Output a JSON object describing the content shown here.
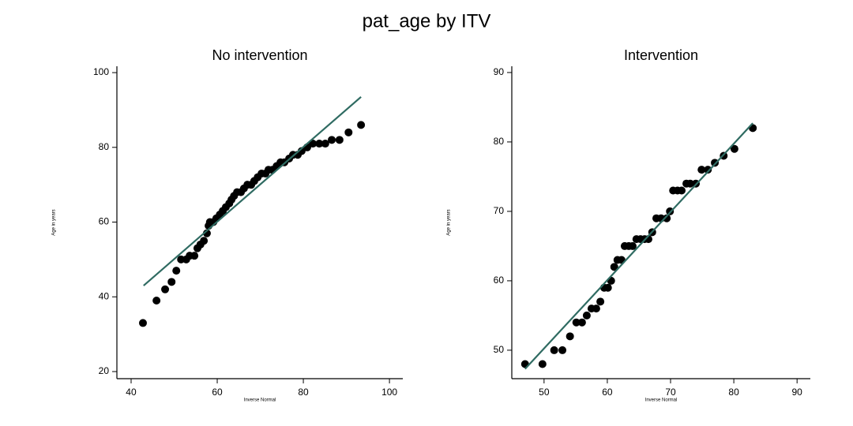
{
  "title": "pat_age by ITV",
  "chart_data": [
    {
      "type": "scatter",
      "title": "No intervention",
      "x_label": "Inverse Normal",
      "y_label": "Age in years",
      "x": [
        42.75,
        45.9,
        47.9,
        49.4,
        50.5,
        51.6,
        52.8,
        53.6,
        54.7,
        55.4,
        56.1,
        56.9,
        57.6,
        58,
        58.3,
        59.1,
        59.8,
        60.6,
        61.3,
        62,
        62.8,
        63.3,
        63.9,
        64.6,
        65.5,
        66.2,
        67,
        67.9,
        68.6,
        69.4,
        70.3,
        71.2,
        71.9,
        72.8,
        73.8,
        74.7,
        75.6,
        76.7,
        77.6,
        78.7,
        79.6,
        80.9,
        82.2,
        83.7,
        85.1,
        86.6,
        88.4,
        90.5,
        93.4
      ],
      "series": [
        {
          "color": "#000000",
          "values": [
            33,
            39,
            42,
            44,
            47,
            50,
            50,
            51,
            51,
            53,
            54,
            55,
            57,
            59,
            60,
            60,
            61,
            62,
            63,
            64,
            65,
            66,
            67,
            68,
            68,
            69,
            70,
            70,
            71,
            72,
            73,
            73,
            74,
            74,
            75,
            76,
            76,
            77,
            78,
            78,
            79,
            80,
            81,
            81,
            81,
            82,
            82,
            84,
            86
          ]
        }
      ],
      "fit_line": {
        "x": [
          42.9,
          93.4
        ],
        "values": [
          43,
          93.5
        ],
        "color": "#2f6b62"
      },
      "xlim": [
        36.7,
        103.1
      ],
      "ylim": [
        18.1,
        101.7
      ],
      "xticks": [
        40,
        60,
        80,
        100
      ],
      "yticks": [
        20,
        40,
        60,
        80,
        100
      ]
    },
    {
      "type": "scatter",
      "title": "Intervention",
      "x_label": "Inverse Normal",
      "y_label": "Age in years",
      "x": [
        47,
        49.75,
        51.6,
        52.9,
        54.1,
        55.1,
        56,
        56.75,
        57.5,
        58.25,
        58.9,
        59.5,
        60.1,
        60.6,
        61.1,
        61.6,
        62.25,
        62.75,
        63.4,
        64,
        64.6,
        65.25,
        65.9,
        66.5,
        67.1,
        67.75,
        68.5,
        69.4,
        69.9,
        70.4,
        71.1,
        71.75,
        72.5,
        73.1,
        74,
        74.9,
        75.9,
        77,
        78.4,
        80.1,
        83
      ],
      "series": [
        {
          "color": "#000000",
          "values": [
            48,
            48,
            50,
            50,
            52,
            54,
            54,
            55,
            56,
            56,
            57,
            59,
            59,
            60,
            62,
            63,
            63,
            65,
            65,
            65,
            66,
            66,
            66,
            66,
            67,
            69,
            69,
            69,
            70,
            73,
            73,
            73,
            74,
            74,
            74,
            76,
            76,
            77,
            78,
            79,
            82
          ]
        }
      ],
      "fit_line": {
        "x": [
          47,
          83
        ],
        "values": [
          47.3,
          82.7
        ],
        "color": "#2f6b62"
      },
      "xlim": [
        44.9,
        92.1
      ],
      "ylim": [
        45.9,
        90.9
      ],
      "xticks": [
        50,
        60,
        70,
        80,
        90
      ],
      "yticks": [
        50,
        60,
        70,
        80,
        90
      ]
    }
  ]
}
